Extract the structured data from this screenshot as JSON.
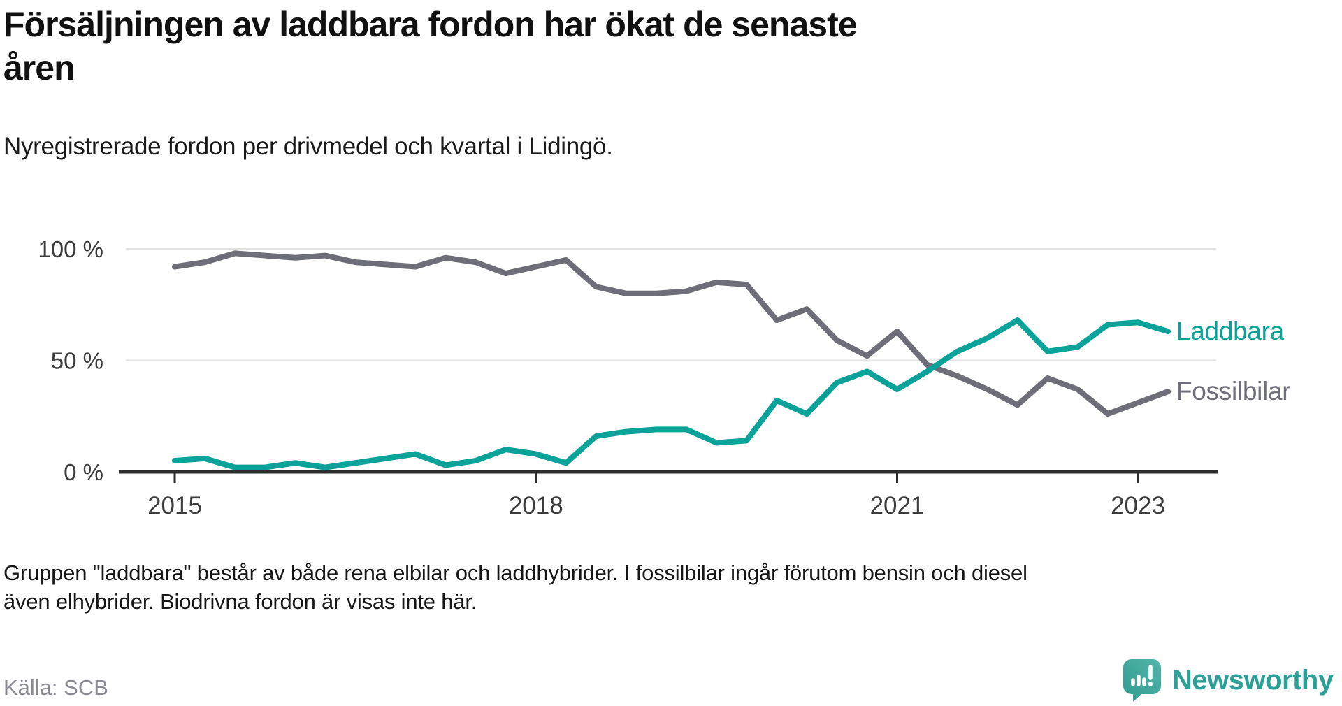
{
  "header": {
    "title_line1": "Försäljningen av laddbara fordon har ökat de senaste",
    "title_line2": "åren",
    "subtitle": "Nyregistrerade fordon per drivmedel och kvartal i Lidingö."
  },
  "chart_data": {
    "type": "line",
    "unit": "%",
    "ylim": [
      0,
      100
    ],
    "grid": "horizontal",
    "legend_position": "right-of-line-end",
    "x_quarters": [
      "2015-Q1",
      "2015-Q2",
      "2015-Q3",
      "2015-Q4",
      "2016-Q1",
      "2016-Q2",
      "2016-Q3",
      "2016-Q4",
      "2017-Q1",
      "2017-Q2",
      "2017-Q3",
      "2017-Q4",
      "2018-Q1",
      "2018-Q2",
      "2018-Q3",
      "2018-Q4",
      "2019-Q1",
      "2019-Q2",
      "2019-Q3",
      "2019-Q4",
      "2020-Q1",
      "2020-Q2",
      "2020-Q3",
      "2020-Q4",
      "2021-Q1",
      "2021-Q2",
      "2021-Q3",
      "2021-Q4",
      "2022-Q1",
      "2022-Q2",
      "2022-Q3",
      "2022-Q4",
      "2023-Q1",
      "2023-Q2"
    ],
    "series": [
      {
        "name": "Laddbara",
        "color": "#0ba29a",
        "values": [
          5,
          6,
          2,
          2,
          4,
          2,
          4,
          6,
          8,
          3,
          5,
          10,
          8,
          4,
          16,
          18,
          19,
          19,
          13,
          14,
          32,
          26,
          40,
          45,
          37,
          45,
          54,
          60,
          68,
          54,
          56,
          66,
          67,
          63
        ]
      },
      {
        "name": "Fossilbilar",
        "color": "#6e6e78",
        "values": [
          92,
          94,
          98,
          97,
          96,
          97,
          94,
          93,
          92,
          96,
          94,
          89,
          92,
          95,
          83,
          80,
          80,
          81,
          85,
          84,
          68,
          73,
          59,
          52,
          63,
          48,
          43,
          37,
          30,
          42,
          37,
          26,
          31,
          36
        ]
      }
    ],
    "y_ticks": [
      {
        "label": "0 %",
        "value": 0
      },
      {
        "label": "50 %",
        "value": 50
      },
      {
        "label": "100 %",
        "value": 100
      }
    ],
    "x_ticks": [
      {
        "label": "2015",
        "index": 0
      },
      {
        "label": "2018",
        "index": 12
      },
      {
        "label": "2021",
        "index": 24
      },
      {
        "label": "2023",
        "index": 32
      }
    ]
  },
  "footer": {
    "note": "Gruppen \"laddbara\" består av både rena elbilar och laddhybrider. I fossilbilar ingår förutom bensin och diesel även elhybrider. Biodrivna fordon är visas inte här.",
    "source": "Källa: SCB"
  },
  "branding": {
    "name": "Newsworthy",
    "color": "#2aa096"
  },
  "colors": {
    "laddbara": "#0ba29a",
    "fossilbilar": "#6e6e78",
    "axis": "#2d2d2d",
    "gridline": "#e2e2e2",
    "tick_label": "#3c3c3c",
    "source_text": "#8a8a92"
  }
}
